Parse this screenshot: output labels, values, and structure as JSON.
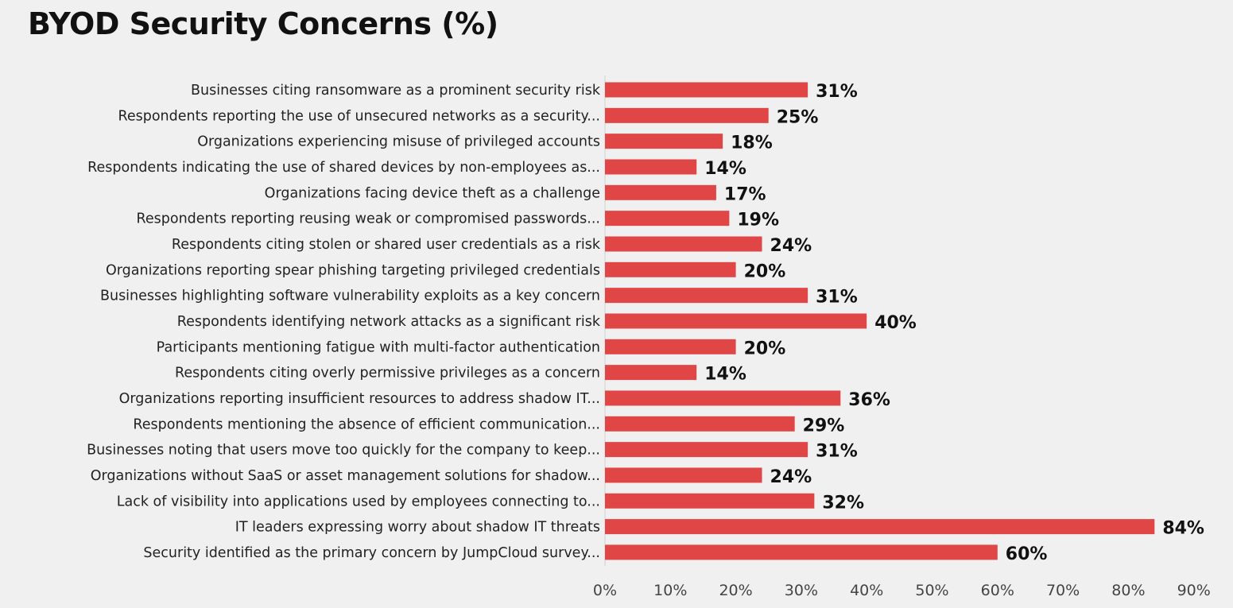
{
  "chart_data": {
    "type": "bar",
    "orientation": "horizontal",
    "title": "BYOD Security Concerns (%)",
    "xlabel": "",
    "ylabel": "",
    "xlim": [
      0,
      90
    ],
    "xticks": [
      "0%",
      "10%",
      "20%",
      "30%",
      "40%",
      "50%",
      "60%",
      "70%",
      "80%",
      "90%"
    ],
    "grid": false,
    "bar_color": "#e04646",
    "categories": [
      "Businesses citing ransomware as a prominent security risk",
      "Respondents reporting the use of unsecured networks as a security...",
      "Organizations experiencing misuse of privileged accounts",
      "Respondents indicating the use of shared devices by non-employees as...",
      "Organizations facing device theft as a challenge",
      "Respondents reporting reusing weak or compromised passwords...",
      "Respondents citing stolen or shared user credentials as a risk",
      "Organizations reporting spear phishing targeting privileged credentials",
      "Businesses highlighting software vulnerability exploits as a key concern",
      "Respondents identifying network attacks as a significant risk",
      "Participants mentioning fatigue with multi-factor authentication",
      "Respondents citing overly permissive privileges as a concern",
      "Organizations reporting insufficient resources to address shadow IT...",
      "Respondents mentioning the absence of efficient communication...",
      "Businesses noting that users move too quickly for the company to keep...",
      "Organizations without SaaS or asset management solutions for shadow...",
      "Lack of visibility into applications used by employees connecting to...",
      "IT leaders expressing worry about shadow IT threats",
      "Security identified as the primary concern by JumpCloud survey..."
    ],
    "values": [
      31,
      25,
      18,
      14,
      17,
      19,
      24,
      20,
      31,
      40,
      20,
      14,
      36,
      29,
      31,
      24,
      32,
      84,
      60
    ],
    "data_labels": [
      "31%",
      "25%",
      "18%",
      "14%",
      "17%",
      "19%",
      "24%",
      "20%",
      "31%",
      "40%",
      "20%",
      "14%",
      "36%",
      "29%",
      "31%",
      "24%",
      "32%",
      "84%",
      "60%"
    ]
  }
}
